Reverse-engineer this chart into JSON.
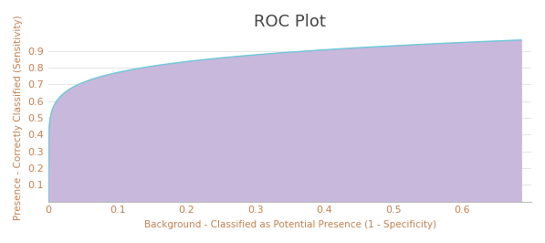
{
  "title": "ROC Plot",
  "xlabel": "Background - Classified as Potential Presence (1 - Specificity)",
  "ylabel": "Presence - Correctly Classified (Sensitivity)",
  "xlim": [
    0,
    0.7
  ],
  "ylim": [
    0,
    1.0
  ],
  "xticks": [
    0,
    0.1,
    0.2,
    0.3,
    0.4,
    0.5,
    0.6
  ],
  "yticks": [
    0.1,
    0.2,
    0.3,
    0.4,
    0.5,
    0.6,
    0.7,
    0.8,
    0.9
  ],
  "curve_color": "#6EC8D8",
  "fill_color": "#C8B8DC",
  "fill_alpha": 1.0,
  "background_color": "#FFFFFF",
  "title_fontsize": 13,
  "axis_label_fontsize": 7.5,
  "tick_fontsize": 8,
  "tick_color": "#C08050",
  "axis_label_color": "#C08050",
  "title_color": "#444444",
  "grid_color": "#E4E4E4",
  "curve_x_max": 0.685,
  "curve_y_max": 0.965,
  "curve_power": 0.15
}
